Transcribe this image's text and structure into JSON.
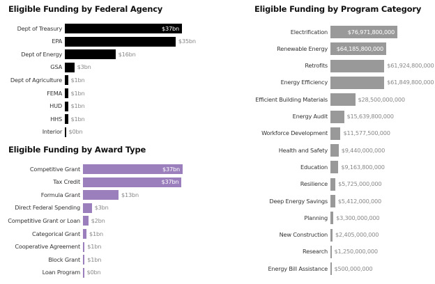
{
  "chart_data": [
    {
      "id": "agency",
      "type": "bar",
      "orientation": "horizontal",
      "title": "Eligible Funding by Federal Agency",
      "color": "#000000",
      "unit": "bn",
      "categories": [
        "Dept of Treasury",
        "EPA",
        "Dept of Energy",
        "GSA",
        "Dept of Agriculture",
        "FEMA",
        "HUD",
        "HHS",
        "Interior"
      ],
      "values": [
        37,
        35,
        16,
        3,
        1,
        1,
        1,
        1,
        0.1
      ],
      "labels": [
        "$37bn",
        "$35bn",
        "$16bn",
        "$3bn",
        "$1bn",
        "$1bn",
        "$1bn",
        "$1bn",
        "$0bn"
      ],
      "label_inside": [
        true,
        false,
        false,
        false,
        false,
        false,
        false,
        false,
        false
      ],
      "xlabel": "",
      "ylabel": ""
    },
    {
      "id": "award",
      "type": "bar",
      "orientation": "horizontal",
      "title": "Eligible Funding by Award Type",
      "color": "#9b7fbd",
      "unit": "bn",
      "categories": [
        "Competitive Grant",
        "Tax Credit",
        "Formula Grant",
        "Direct Federal Spending",
        "Competitive Grant or Loan",
        "Categorical Grant",
        "Cooperative Agreement",
        "Block Grant",
        "Loan Program"
      ],
      "values": [
        37.3,
        36.9,
        13.3,
        3.3,
        2.0,
        1.3,
        0.6,
        0.6,
        0.1
      ],
      "labels": [
        "$37bn",
        "$37bn",
        "$13bn",
        "$3bn",
        "$2bn",
        "$1bn",
        "$1bn",
        "$1bn",
        "$0bn"
      ],
      "label_inside": [
        true,
        true,
        false,
        false,
        false,
        false,
        false,
        false,
        false
      ],
      "xlabel": "",
      "ylabel": ""
    },
    {
      "id": "program",
      "type": "bar",
      "orientation": "horizontal",
      "title": "Eligible Funding by Program Category",
      "color": "#999999",
      "categories": [
        "Electrification",
        "Renewable Energy",
        "Retrofits",
        "Energy Efficiency",
        "Efficient Building Materials",
        "Energy Audit",
        "Workforce Development",
        "Health and Safety",
        "Education",
        "Resilience",
        "Deep Energy Savings",
        "Planning",
        "New Construction",
        "Research",
        "Energy Bill Assistance"
      ],
      "values": [
        76971800000,
        64185800000,
        61924800000,
        61849800000,
        28500000000,
        15639800000,
        11577500000,
        9440000000,
        9163800000,
        5725000000,
        5412000000,
        3300000000,
        2405000000,
        1250000000,
        500000000
      ],
      "labels": [
        "$76,971,800,000",
        "$64,185,800,000",
        "$61,924,800,000",
        "$61,849,800,000",
        "$28,500,000,000",
        "$15,639,800,000",
        "$11,577,500,000",
        "$9,440,000,000",
        "$9,163,800,000",
        "$5,725,000,000",
        "$5,412,000,000",
        "$3,300,000,000",
        "$2,405,000,000",
        "$1,250,000,000",
        "$500,000,000"
      ],
      "label_inside": [
        true,
        true,
        false,
        false,
        false,
        false,
        false,
        false,
        false,
        false,
        false,
        false,
        false,
        false,
        false
      ],
      "xlabel": "",
      "ylabel": ""
    }
  ]
}
